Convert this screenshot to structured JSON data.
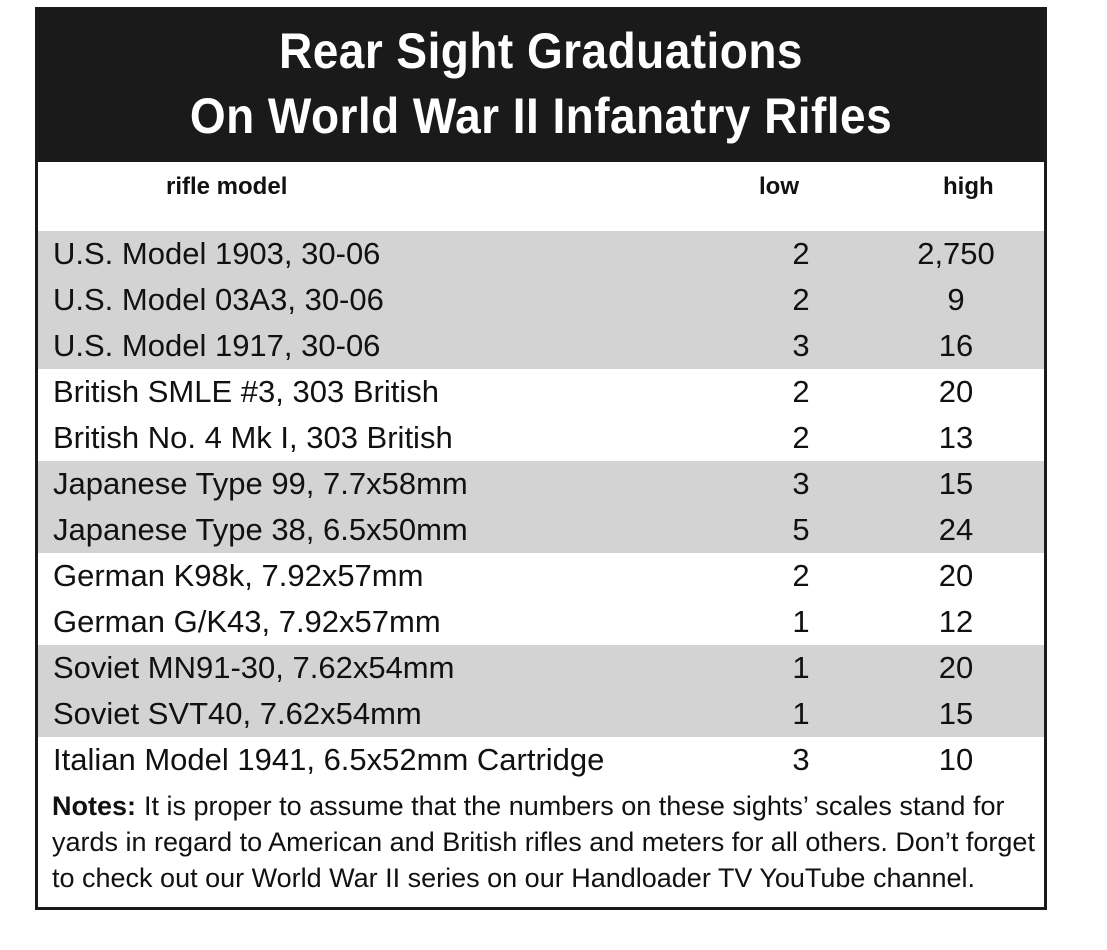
{
  "title": {
    "line1": "Rear Sight Graduations",
    "line2": "On World War II Infanatry Rifles"
  },
  "headers": {
    "model": "rifle model",
    "low": "low",
    "high": "high"
  },
  "rows": [
    {
      "model": "U.S. Model 1903, 30-06",
      "low": "2",
      "high": "2,750",
      "shaded": true
    },
    {
      "model": "U.S. Model 03A3, 30-06",
      "low": "2",
      "high": "9",
      "shaded": true
    },
    {
      "model": "U.S. Model 1917, 30-06",
      "low": "3",
      "high": "16",
      "shaded": true
    },
    {
      "model": "British SMLE #3, 303 British",
      "low": "2",
      "high": "20",
      "shaded": false
    },
    {
      "model": "British No. 4 Mk I, 303 British",
      "low": "2",
      "high": "13",
      "shaded": false
    },
    {
      "model": "Japanese Type 99, 7.7x58mm",
      "low": "3",
      "high": "15",
      "shaded": true
    },
    {
      "model": "Japanese Type 38, 6.5x50mm",
      "low": "5",
      "high": "24",
      "shaded": true
    },
    {
      "model": "German K98k, 7.92x57mm",
      "low": "2",
      "high": "20",
      "shaded": false
    },
    {
      "model": "German G/K43, 7.92x57mm",
      "low": "1",
      "high": "12",
      "shaded": false
    },
    {
      "model": "Soviet MN91-30, 7.62x54mm",
      "low": "1",
      "high": "20",
      "shaded": true
    },
    {
      "model": "Soviet SVT40, 7.62x54mm",
      "low": "1",
      "high": "15",
      "shaded": true
    },
    {
      "model": "Italian Model 1941, 6.5x52mm Cartridge",
      "low": "3",
      "high": "10",
      "shaded": false
    }
  ],
  "notes": {
    "label": "Notes:",
    "text": "It is proper to assume that the numbers on these sights’ scales stand for yards in regard to American and British rifles and meters for all others. Don’t forget to check out our World War II series on our Handloader TV YouTube channel."
  },
  "colors": {
    "title_bg": "#1a1a1a",
    "title_text": "#ffffff",
    "shade": "#d3d3d3"
  },
  "chart_data": {
    "type": "table",
    "title": "Rear Sight Graduations On World War II Infanatry Rifles",
    "columns": [
      "rifle model",
      "low",
      "high"
    ],
    "rows": [
      [
        "U.S. Model 1903, 30-06",
        "2",
        "2,750"
      ],
      [
        "U.S. Model 03A3, 30-06",
        "2",
        "9"
      ],
      [
        "U.S. Model 1917, 30-06",
        "3",
        "16"
      ],
      [
        "British SMLE #3, 303 British",
        "2",
        "20"
      ],
      [
        "British No. 4 Mk I, 303 British",
        "2",
        "13"
      ],
      [
        "Japanese Type 99, 7.7x58mm",
        "3",
        "15"
      ],
      [
        "Japanese Type 38, 6.5x50mm",
        "5",
        "24"
      ],
      [
        "German K98k, 7.92x57mm",
        "2",
        "20"
      ],
      [
        "German G/K43, 7.92x57mm",
        "1",
        "12"
      ],
      [
        "Soviet MN91-30, 7.62x54mm",
        "1",
        "20"
      ],
      [
        "Soviet SVT40, 7.62x54mm",
        "1",
        "15"
      ],
      [
        "Italian Model 1941, 6.5x52mm Cartridge",
        "3",
        "10"
      ]
    ]
  }
}
